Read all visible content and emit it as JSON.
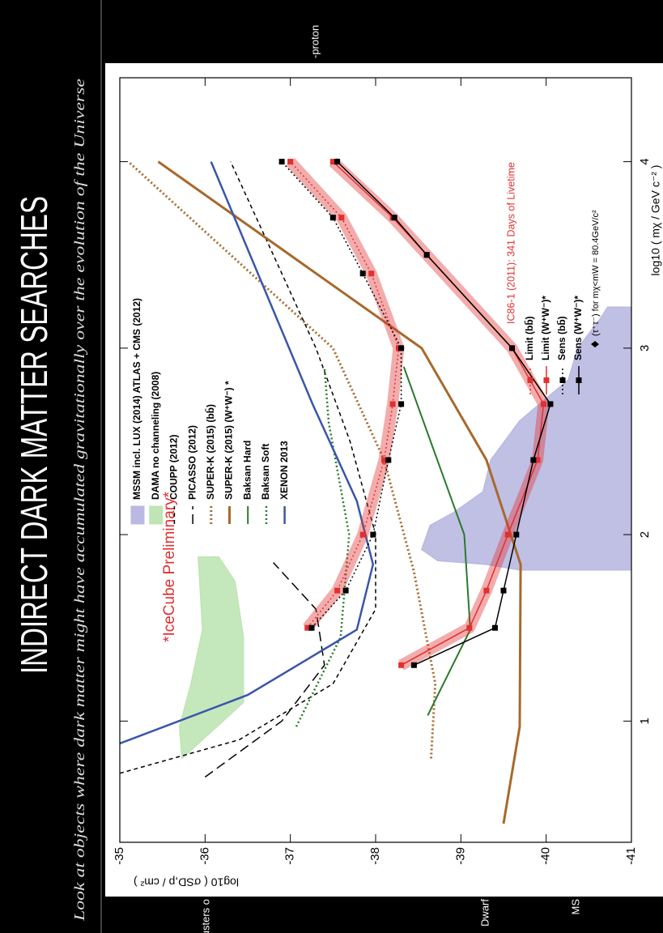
{
  "header": {
    "title": "INDIRECT DARK MATTER SEARCHES",
    "subtitle": "Look at objects where dark matter might have accumulated gravitationally over the evolution of the Universe"
  },
  "background_labels": [
    "-proton",
    "Clusters o",
    "Dwarf",
    "MS"
  ],
  "chart_data": {
    "type": "line",
    "x_label": "log10 ( mχ / GeV c⁻² )",
    "y_label": "log10 ( σSD,p / cm² )",
    "annotation": "*IceCube Preliminary*",
    "xlim": [
      0.35,
      4.45
    ],
    "ylim": [
      -41,
      -35
    ],
    "xticks": [
      1,
      2,
      3,
      4
    ],
    "yticks": [
      -35,
      -36,
      -37,
      -38,
      -39,
      -40,
      -41
    ],
    "series": [
      {
        "name": "MSSM incl. LUX (2014) ATLAS + CMS (2012)",
        "kind": "region",
        "color": "#b9b9e2",
        "x": [
          1.81,
          1.81,
          1.84,
          1.86,
          1.92,
          2.05,
          2.12,
          2.23,
          2.4,
          2.61,
          2.83,
          3.0,
          3.16,
          3.22,
          3.22
        ],
        "values": [
          -41,
          -39.69,
          -39.3,
          -38.73,
          -38.54,
          -38.64,
          -38.92,
          -39.26,
          -39.35,
          -39.69,
          -40.26,
          -40.37,
          -40.64,
          -40.72,
          -41
        ]
      },
      {
        "name": "DAMA no channeling (2008)",
        "kind": "region",
        "color": "#bfe4b5",
        "x": [
          0.8,
          1.1,
          1.45,
          1.75,
          1.88,
          1.88,
          1.49,
          1.19,
          0.97
        ],
        "values": [
          -35.73,
          -36.45,
          -36.45,
          -36.35,
          -36.16,
          -35.92,
          -35.97,
          -35.83,
          -35.7
        ]
      },
      {
        "name": "COUPP (2012)",
        "kind": "line",
        "color": "#000000",
        "dash": "dashed",
        "width": 1.5,
        "x": [
          0.72,
          0.9,
          1.2,
          1.6,
          2.0,
          2.5,
          3.0,
          3.5,
          4.0
        ],
        "values": [
          -35.0,
          -36.4,
          -37.5,
          -38.0,
          -38.0,
          -37.7,
          -37.3,
          -36.8,
          -36.3
        ]
      },
      {
        "name": "PICASSO (2012)",
        "kind": "line",
        "color": "#000000",
        "dash": "long-dashed",
        "width": 1.5,
        "x": [
          0.7,
          1.0,
          1.3,
          1.6,
          1.85
        ],
        "values": [
          -36.0,
          -36.9,
          -37.4,
          -37.3,
          -36.8
        ]
      },
      {
        "name": "SUPER-K (2015) (bb̄)",
        "kind": "line",
        "color": "#a8692c",
        "dash": "dotted",
        "width": 3,
        "x": [
          0.8,
          1.2,
          1.8,
          2.4,
          3.0,
          4.0
        ],
        "values": [
          -38.65,
          -38.7,
          -38.45,
          -38.1,
          -37.5,
          -35.1
        ]
      },
      {
        "name": "SUPER-K (2015) (W⁺W⁻) *",
        "kind": "line",
        "color": "#a8692c",
        "dash": "solid",
        "width": 3,
        "x": [
          0.45,
          0.97,
          1.84,
          2.4,
          3.0,
          4.0
        ],
        "values": [
          -39.5,
          -39.69,
          -39.7,
          -39.3,
          -38.54,
          -35.45
        ]
      },
      {
        "name": "Baksan Hard",
        "kind": "line",
        "color": "#2a7a2a",
        "dash": "solid",
        "width": 2,
        "x": [
          1.03,
          1.49,
          2.0,
          2.57,
          2.9
        ],
        "values": [
          -38.61,
          -39.11,
          -39.04,
          -38.59,
          -38.33
        ]
      },
      {
        "name": "Baksan Soft",
        "kind": "line",
        "color": "#2a7a2a",
        "dash": "dotted",
        "width": 2.5,
        "x": [
          0.97,
          1.45,
          2.0,
          2.6,
          2.9
        ],
        "values": [
          -37.07,
          -37.59,
          -37.69,
          -37.45,
          -37.4
        ]
      },
      {
        "name": "XENON 2013",
        "kind": "line",
        "color": "#3a56a8",
        "dash": "solid",
        "width": 2.5,
        "x": [
          0.88,
          1.14,
          1.49,
          1.84,
          2.18,
          2.7,
          4.0
        ],
        "values": [
          -35.0,
          -36.5,
          -37.78,
          -37.97,
          -37.78,
          -37.26,
          -36.07
        ]
      }
    ],
    "icecube": {
      "title": "IC86-1 (2011): 341 Days of Livetime",
      "note": "(τ⁺τ⁻) for mχ<mW = 80.4GeV/c²",
      "series": [
        {
          "name": "Limit (bb̄)",
          "color": "#e03030",
          "dash": "dotted",
          "band": true,
          "x": [
            1.5,
            1.7,
            2.0,
            2.4,
            2.7,
            3.0,
            3.4,
            3.7,
            4.0
          ],
          "values": [
            -37.2,
            -37.55,
            -37.85,
            -38.1,
            -38.2,
            -38.27,
            -37.95,
            -37.6,
            -37.0
          ]
        },
        {
          "name": "Limit (W⁺W⁻)*",
          "color": "#e03030",
          "dash": "solid",
          "band": true,
          "x": [
            1.3,
            1.5,
            1.7,
            2.0,
            2.4,
            2.7,
            3.0,
            3.5,
            3.7,
            4.0
          ],
          "values": [
            -38.3,
            -39.1,
            -39.3,
            -39.55,
            -39.9,
            -39.97,
            -39.6,
            -38.6,
            -38.2,
            -37.5
          ]
        },
        {
          "name": "Sens (bb̄)",
          "color": "#000000",
          "dash": "dotted",
          "band": false,
          "x": [
            1.5,
            1.7,
            2.0,
            2.4,
            2.7,
            3.0,
            3.4,
            3.7,
            4.0
          ],
          "values": [
            -37.25,
            -37.65,
            -37.97,
            -38.15,
            -38.3,
            -38.3,
            -37.85,
            -37.5,
            -36.9
          ]
        },
        {
          "name": "Sens (W⁺W⁻)*",
          "color": "#000000",
          "dash": "solid",
          "band": false,
          "x": [
            1.3,
            1.5,
            1.7,
            2.0,
            2.4,
            2.7,
            3.0,
            3.5,
            3.7,
            4.0
          ],
          "values": [
            -38.45,
            -39.4,
            -39.5,
            -39.65,
            -39.85,
            -40.05,
            -39.6,
            -38.6,
            -38.22,
            -37.55
          ]
        }
      ]
    }
  }
}
